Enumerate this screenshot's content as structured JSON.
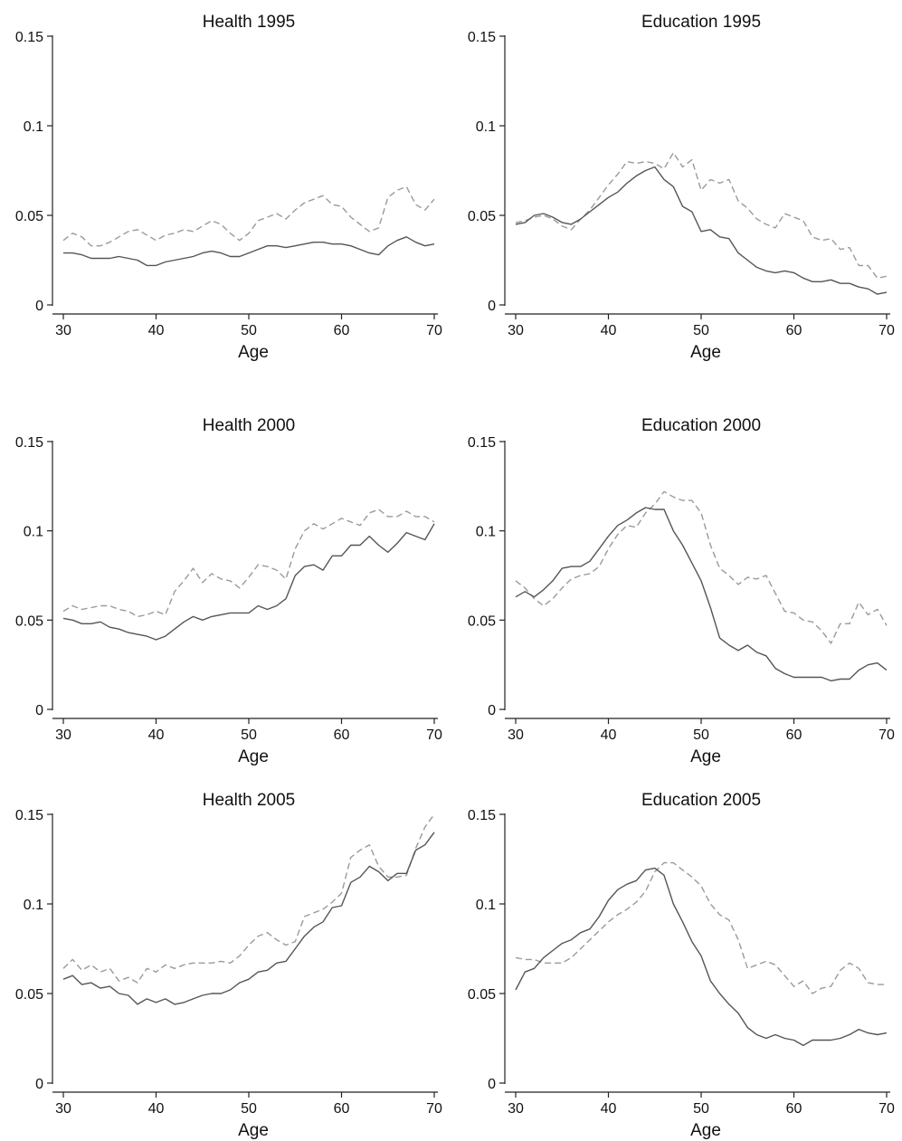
{
  "chart_data": [
    {
      "type": "line",
      "title": "Health 1995",
      "xlabel": "Age",
      "ylabel": "",
      "xlim": [
        30,
        70
      ],
      "ylim": [
        0,
        0.15
      ],
      "xticks": [
        30,
        40,
        50,
        60,
        70
      ],
      "yticks": [
        0,
        0.05,
        0.1,
        0.15
      ],
      "ytick_labels": [
        "0",
        "0.05",
        "0.1",
        "0.15"
      ],
      "grid": false,
      "x": [
        30,
        31,
        32,
        33,
        34,
        35,
        36,
        37,
        38,
        39,
        40,
        41,
        42,
        43,
        44,
        45,
        46,
        47,
        48,
        49,
        50,
        51,
        52,
        53,
        54,
        55,
        56,
        57,
        58,
        59,
        60,
        61,
        62,
        63,
        64,
        65,
        66,
        67,
        68,
        69,
        70
      ],
      "series": [
        {
          "style": "solid",
          "color": "#555555",
          "values": [
            0.029,
            0.029,
            0.028,
            0.026,
            0.026,
            0.026,
            0.027,
            0.026,
            0.025,
            0.022,
            0.022,
            0.024,
            0.025,
            0.026,
            0.027,
            0.029,
            0.03,
            0.029,
            0.027,
            0.027,
            0.029,
            0.031,
            0.033,
            0.033,
            0.032,
            0.033,
            0.034,
            0.035,
            0.035,
            0.034,
            0.034,
            0.033,
            0.031,
            0.029,
            0.028,
            0.033,
            0.036,
            0.038,
            0.035,
            0.033,
            0.034
          ]
        },
        {
          "style": "dashed",
          "color": "#9a9a9a",
          "values": [
            0.036,
            0.04,
            0.038,
            0.033,
            0.033,
            0.035,
            0.038,
            0.041,
            0.042,
            0.039,
            0.036,
            0.039,
            0.04,
            0.042,
            0.041,
            0.044,
            0.047,
            0.045,
            0.04,
            0.036,
            0.04,
            0.047,
            0.049,
            0.051,
            0.048,
            0.053,
            0.057,
            0.059,
            0.061,
            0.056,
            0.055,
            0.049,
            0.045,
            0.041,
            0.043,
            0.06,
            0.064,
            0.066,
            0.056,
            0.053,
            0.059
          ]
        }
      ]
    },
    {
      "type": "line",
      "title": "Education 1995",
      "xlabel": "Age",
      "ylabel": "",
      "xlim": [
        30,
        70
      ],
      "ylim": [
        0,
        0.15
      ],
      "xticks": [
        30,
        40,
        50,
        60,
        70
      ],
      "yticks": [
        0,
        0.05,
        0.1,
        0.15
      ],
      "ytick_labels": [
        "0",
        "0.05",
        "0.1",
        "0.15"
      ],
      "grid": false,
      "x": [
        30,
        31,
        32,
        33,
        34,
        35,
        36,
        37,
        38,
        39,
        40,
        41,
        42,
        43,
        44,
        45,
        46,
        47,
        48,
        49,
        50,
        51,
        52,
        53,
        54,
        55,
        56,
        57,
        58,
        59,
        60,
        61,
        62,
        63,
        64,
        65,
        66,
        67,
        68,
        69,
        70
      ],
      "series": [
        {
          "style": "solid",
          "color": "#555555",
          "values": [
            0.045,
            0.046,
            0.05,
            0.051,
            0.049,
            0.046,
            0.045,
            0.048,
            0.052,
            0.056,
            0.06,
            0.063,
            0.068,
            0.072,
            0.075,
            0.077,
            0.07,
            0.066,
            0.055,
            0.052,
            0.041,
            0.042,
            0.038,
            0.037,
            0.029,
            0.025,
            0.021,
            0.019,
            0.018,
            0.019,
            0.018,
            0.015,
            0.013,
            0.013,
            0.014,
            0.012,
            0.012,
            0.01,
            0.009,
            0.006,
            0.007
          ]
        },
        {
          "style": "dashed",
          "color": "#9a9a9a",
          "values": [
            0.046,
            0.047,
            0.049,
            0.05,
            0.048,
            0.044,
            0.042,
            0.048,
            0.053,
            0.06,
            0.067,
            0.073,
            0.08,
            0.079,
            0.08,
            0.079,
            0.076,
            0.085,
            0.077,
            0.081,
            0.064,
            0.07,
            0.068,
            0.07,
            0.058,
            0.054,
            0.048,
            0.045,
            0.043,
            0.051,
            0.049,
            0.047,
            0.038,
            0.036,
            0.037,
            0.031,
            0.032,
            0.022,
            0.022,
            0.015,
            0.016
          ]
        }
      ]
    },
    {
      "type": "line",
      "title": "Health 2000",
      "xlabel": "Age",
      "ylabel": "",
      "xlim": [
        30,
        70
      ],
      "ylim": [
        0,
        0.15
      ],
      "xticks": [
        30,
        40,
        50,
        60,
        70
      ],
      "yticks": [
        0,
        0.05,
        0.1,
        0.15
      ],
      "ytick_labels": [
        "0",
        "0.05",
        "0.1",
        "0.15"
      ],
      "grid": false,
      "x": [
        30,
        31,
        32,
        33,
        34,
        35,
        36,
        37,
        38,
        39,
        40,
        41,
        42,
        43,
        44,
        45,
        46,
        47,
        48,
        49,
        50,
        51,
        52,
        53,
        54,
        55,
        56,
        57,
        58,
        59,
        60,
        61,
        62,
        63,
        64,
        65,
        66,
        67,
        68,
        69,
        70
      ],
      "series": [
        {
          "style": "solid",
          "color": "#555555",
          "values": [
            0.051,
            0.05,
            0.048,
            0.048,
            0.049,
            0.046,
            0.045,
            0.043,
            0.042,
            0.041,
            0.039,
            0.041,
            0.045,
            0.049,
            0.052,
            0.05,
            0.052,
            0.053,
            0.054,
            0.054,
            0.054,
            0.058,
            0.056,
            0.058,
            0.062,
            0.075,
            0.08,
            0.081,
            0.078,
            0.086,
            0.086,
            0.092,
            0.092,
            0.097,
            0.092,
            0.088,
            0.093,
            0.099,
            0.097,
            0.095,
            0.104
          ]
        },
        {
          "style": "dashed",
          "color": "#9a9a9a",
          "values": [
            0.055,
            0.058,
            0.056,
            0.057,
            0.058,
            0.058,
            0.056,
            0.055,
            0.052,
            0.053,
            0.055,
            0.053,
            0.066,
            0.072,
            0.079,
            0.071,
            0.076,
            0.073,
            0.072,
            0.068,
            0.074,
            0.081,
            0.08,
            0.078,
            0.073,
            0.09,
            0.1,
            0.104,
            0.101,
            0.104,
            0.107,
            0.105,
            0.103,
            0.11,
            0.112,
            0.108,
            0.108,
            0.111,
            0.108,
            0.108,
            0.105
          ]
        }
      ]
    },
    {
      "type": "line",
      "title": "Education 2000",
      "xlabel": "Age",
      "ylabel": "",
      "xlim": [
        30,
        70
      ],
      "ylim": [
        0,
        0.15
      ],
      "xticks": [
        30,
        40,
        50,
        60,
        70
      ],
      "yticks": [
        0,
        0.05,
        0.1,
        0.15
      ],
      "ytick_labels": [
        "0",
        "0.05",
        "0.1",
        "0.15"
      ],
      "grid": false,
      "x": [
        30,
        31,
        32,
        33,
        34,
        35,
        36,
        37,
        38,
        39,
        40,
        41,
        42,
        43,
        44,
        45,
        46,
        47,
        48,
        49,
        50,
        51,
        52,
        53,
        54,
        55,
        56,
        57,
        58,
        59,
        60,
        61,
        62,
        63,
        64,
        65,
        66,
        67,
        68,
        69,
        70
      ],
      "series": [
        {
          "style": "solid",
          "color": "#555555",
          "values": [
            0.063,
            0.066,
            0.063,
            0.067,
            0.072,
            0.079,
            0.08,
            0.08,
            0.083,
            0.09,
            0.097,
            0.103,
            0.106,
            0.11,
            0.113,
            0.112,
            0.112,
            0.1,
            0.092,
            0.082,
            0.072,
            0.057,
            0.04,
            0.036,
            0.033,
            0.036,
            0.032,
            0.03,
            0.023,
            0.02,
            0.018,
            0.018,
            0.018,
            0.018,
            0.016,
            0.017,
            0.017,
            0.022,
            0.025,
            0.026,
            0.022
          ]
        },
        {
          "style": "dashed",
          "color": "#9a9a9a",
          "values": [
            0.072,
            0.068,
            0.062,
            0.058,
            0.062,
            0.068,
            0.073,
            0.075,
            0.076,
            0.08,
            0.09,
            0.098,
            0.103,
            0.102,
            0.11,
            0.115,
            0.122,
            0.119,
            0.117,
            0.117,
            0.11,
            0.092,
            0.079,
            0.075,
            0.07,
            0.074,
            0.073,
            0.075,
            0.065,
            0.055,
            0.054,
            0.05,
            0.049,
            0.044,
            0.037,
            0.048,
            0.048,
            0.06,
            0.053,
            0.056,
            0.047
          ]
        }
      ]
    },
    {
      "type": "line",
      "title": "Health 2005",
      "xlabel": "Age",
      "ylabel": "",
      "xlim": [
        30,
        70
      ],
      "ylim": [
        0,
        0.15
      ],
      "xticks": [
        30,
        40,
        50,
        60,
        70
      ],
      "yticks": [
        0,
        0.05,
        0.1,
        0.15
      ],
      "ytick_labels": [
        "0",
        "0.05",
        "0.1",
        "0.15"
      ],
      "grid": false,
      "x": [
        30,
        31,
        32,
        33,
        34,
        35,
        36,
        37,
        38,
        39,
        40,
        41,
        42,
        43,
        44,
        45,
        46,
        47,
        48,
        49,
        50,
        51,
        52,
        53,
        54,
        55,
        56,
        57,
        58,
        59,
        60,
        61,
        62,
        63,
        64,
        65,
        66,
        67,
        68,
        69,
        70
      ],
      "series": [
        {
          "style": "solid",
          "color": "#555555",
          "values": [
            0.058,
            0.06,
            0.055,
            0.056,
            0.053,
            0.054,
            0.05,
            0.049,
            0.044,
            0.047,
            0.045,
            0.047,
            0.044,
            0.045,
            0.047,
            0.049,
            0.05,
            0.05,
            0.052,
            0.056,
            0.058,
            0.062,
            0.063,
            0.067,
            0.068,
            0.075,
            0.082,
            0.087,
            0.09,
            0.098,
            0.099,
            0.112,
            0.115,
            0.121,
            0.118,
            0.113,
            0.117,
            0.117,
            0.13,
            0.133,
            0.14
          ]
        },
        {
          "style": "dashed",
          "color": "#9a9a9a",
          "values": [
            0.064,
            0.069,
            0.063,
            0.066,
            0.062,
            0.064,
            0.057,
            0.059,
            0.056,
            0.064,
            0.062,
            0.066,
            0.064,
            0.066,
            0.067,
            0.067,
            0.067,
            0.068,
            0.067,
            0.071,
            0.077,
            0.082,
            0.084,
            0.08,
            0.077,
            0.079,
            0.093,
            0.095,
            0.097,
            0.101,
            0.106,
            0.126,
            0.13,
            0.133,
            0.121,
            0.115,
            0.115,
            0.116,
            0.131,
            0.143,
            0.15
          ]
        }
      ]
    },
    {
      "type": "line",
      "title": "Education 2005",
      "xlabel": "Age",
      "ylabel": "",
      "xlim": [
        30,
        70
      ],
      "ylim": [
        0,
        0.15
      ],
      "xticks": [
        30,
        40,
        50,
        60,
        70
      ],
      "yticks": [
        0,
        0.05,
        0.1,
        0.15
      ],
      "ytick_labels": [
        "0",
        "0.05",
        "0.1",
        "0.15"
      ],
      "grid": false,
      "x": [
        30,
        31,
        32,
        33,
        34,
        35,
        36,
        37,
        38,
        39,
        40,
        41,
        42,
        43,
        44,
        45,
        46,
        47,
        48,
        49,
        50,
        51,
        52,
        53,
        54,
        55,
        56,
        57,
        58,
        59,
        60,
        61,
        62,
        63,
        64,
        65,
        66,
        67,
        68,
        69,
        70
      ],
      "series": [
        {
          "style": "solid",
          "color": "#555555",
          "values": [
            0.052,
            0.062,
            0.064,
            0.07,
            0.074,
            0.078,
            0.08,
            0.084,
            0.086,
            0.093,
            0.102,
            0.108,
            0.111,
            0.113,
            0.119,
            0.12,
            0.116,
            0.1,
            0.09,
            0.079,
            0.071,
            0.057,
            0.05,
            0.044,
            0.039,
            0.031,
            0.027,
            0.025,
            0.027,
            0.025,
            0.024,
            0.021,
            0.024,
            0.024,
            0.024,
            0.025,
            0.027,
            0.03,
            0.028,
            0.027,
            0.028
          ]
        },
        {
          "style": "dashed",
          "color": "#9a9a9a",
          "values": [
            0.07,
            0.069,
            0.069,
            0.067,
            0.067,
            0.067,
            0.07,
            0.075,
            0.08,
            0.085,
            0.09,
            0.094,
            0.097,
            0.101,
            0.107,
            0.118,
            0.123,
            0.123,
            0.119,
            0.115,
            0.11,
            0.1,
            0.094,
            0.091,
            0.08,
            0.064,
            0.066,
            0.068,
            0.066,
            0.06,
            0.054,
            0.057,
            0.05,
            0.053,
            0.054,
            0.063,
            0.067,
            0.064,
            0.056,
            0.055,
            0.055
          ]
        }
      ]
    }
  ]
}
